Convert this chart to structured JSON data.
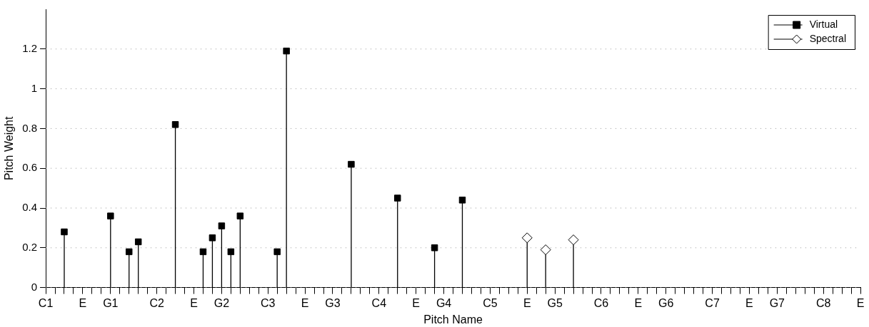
{
  "chart_data": {
    "type": "lollipop",
    "xlabel": "Pitch Name",
    "ylabel": "Pitch Weight",
    "categories": [
      "C1",
      null,
      null,
      null,
      "E",
      null,
      null,
      "G1",
      null,
      null,
      null,
      null,
      "C2",
      null,
      null,
      null,
      "E",
      null,
      null,
      "G2",
      null,
      null,
      null,
      null,
      "C3",
      null,
      null,
      null,
      "E",
      null,
      null,
      "G3",
      null,
      null,
      null,
      null,
      "C4",
      null,
      null,
      null,
      "E",
      null,
      null,
      "G4",
      null,
      null,
      null,
      null,
      "C5",
      null,
      null,
      null,
      "E",
      null,
      null,
      "G5",
      null,
      null,
      null,
      null,
      "C6",
      null,
      null,
      null,
      "E",
      null,
      null,
      "G6",
      null,
      null,
      null,
      null,
      "C7",
      null,
      null,
      null,
      "E",
      null,
      null,
      "G7",
      null,
      null,
      null,
      null,
      "C8",
      null,
      null,
      null,
      "E"
    ],
    "ylim": [
      0,
      1.4
    ],
    "yticks": [
      0,
      0.2,
      0.4,
      0.6,
      0.8,
      1,
      1.2
    ],
    "grid": "y",
    "legend": "top right",
    "series": [
      {
        "name": "Virtual",
        "color": "#000000",
        "marker": "square",
        "values": [
          null,
          null,
          0.28,
          null,
          null,
          null,
          null,
          0.36,
          null,
          0.18,
          0.23,
          null,
          null,
          null,
          0.82,
          null,
          null,
          0.18,
          0.25,
          0.31,
          0.18,
          0.36,
          null,
          null,
          null,
          0.18,
          1.19,
          null,
          null,
          null,
          null,
          null,
          null,
          0.62,
          null,
          null,
          null,
          null,
          0.45,
          null,
          null,
          null,
          0.2,
          null,
          null,
          0.44,
          null,
          null,
          null,
          null,
          null,
          null,
          null,
          null,
          null,
          null,
          null,
          null,
          null,
          null,
          null,
          null,
          null,
          null,
          null,
          null,
          null,
          null,
          null,
          null,
          null,
          null,
          null,
          null,
          null,
          null,
          null,
          null,
          null,
          null,
          null,
          null,
          null,
          null,
          null,
          null,
          null,
          null,
          null
        ]
      },
      {
        "name": "Spectral",
        "color": "#000000",
        "marker": "diamond",
        "values": [
          null,
          null,
          null,
          null,
          null,
          null,
          null,
          null,
          null,
          null,
          null,
          null,
          null,
          null,
          null,
          null,
          null,
          null,
          null,
          null,
          null,
          null,
          null,
          null,
          null,
          null,
          null,
          null,
          null,
          null,
          null,
          null,
          null,
          null,
          null,
          null,
          null,
          null,
          null,
          null,
          null,
          null,
          null,
          null,
          null,
          null,
          null,
          null,
          null,
          null,
          null,
          null,
          0.25,
          null,
          0.19,
          null,
          null,
          0.24,
          null,
          null,
          null,
          null,
          null,
          null,
          null,
          null,
          null,
          null,
          null,
          null,
          null,
          null,
          null,
          null,
          null,
          null,
          null,
          null,
          null,
          null,
          null,
          null,
          null,
          null,
          null,
          null,
          null,
          null,
          null
        ]
      }
    ]
  }
}
